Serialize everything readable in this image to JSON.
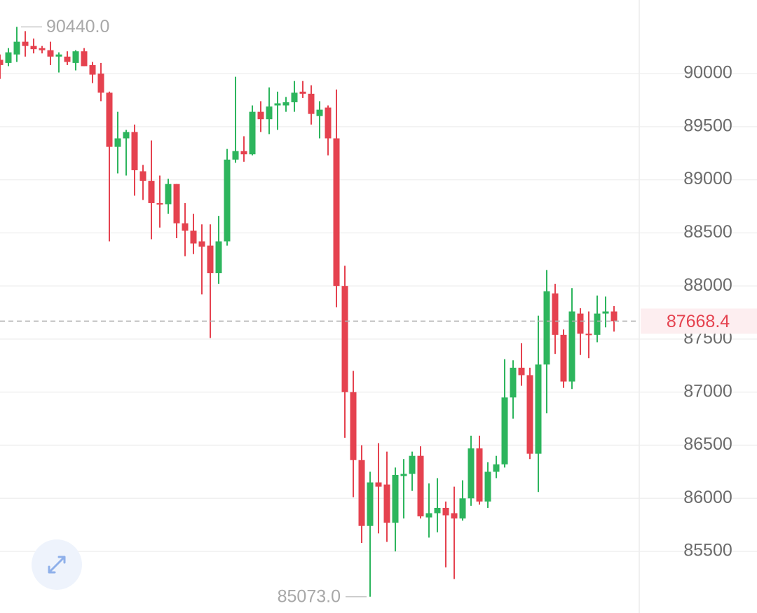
{
  "chart_data": {
    "type": "candlestick",
    "up_color": "#2db55d",
    "down_color": "#e5424f",
    "ylim": [
      84920,
      90693
    ],
    "yticks": [
      85500,
      86000,
      86500,
      87000,
      87500,
      88000,
      88500,
      89000,
      89500,
      90000
    ],
    "grid": true,
    "open": [
      90130,
      90100,
      90180,
      90300,
      90260,
      90240,
      90220,
      90160,
      90160,
      90100,
      90210,
      90080,
      90000,
      89820,
      89310,
      89390,
      89450,
      89080,
      88990,
      88780,
      88770,
      88960,
      88590,
      88520,
      88420,
      88380,
      88120,
      88420,
      89190,
      89270,
      89240,
      89640,
      89570,
      89700,
      89700,
      89730,
      89830,
      89810,
      89600,
      89680,
      89390,
      88000,
      87000,
      86360,
      85740,
      86150,
      86130,
      85770,
      86210,
      86230,
      86400,
      85820,
      85860,
      85910,
      85860,
      85810,
      86000,
      86470,
      85970,
      86250,
      86320,
      86950,
      87230,
      87160,
      86420,
      87260,
      87930,
      87540,
      87100,
      87740,
      87550,
      87540,
      87740,
      87760
    ],
    "high": [
      90180,
      90240,
      90440,
      90400,
      90330,
      90260,
      90300,
      90200,
      90210,
      90220,
      90240,
      90110,
      90100,
      89830,
      89640,
      89470,
      89520,
      89140,
      89370,
      89040,
      89010,
      88960,
      88780,
      88680,
      88580,
      88580,
      88660,
      89290,
      89970,
      89410,
      89700,
      89740,
      89870,
      89830,
      89780,
      89930,
      89930,
      89890,
      89740,
      89700,
      89850,
      88190,
      87200,
      86500,
      86250,
      86520,
      86440,
      86290,
      86370,
      86440,
      86490,
      86140,
      86190,
      85970,
      86110,
      86170,
      86590,
      86590,
      86340,
      86400,
      87310,
      87300,
      87460,
      87230,
      87720,
      88150,
      88020,
      87590,
      87980,
      87790,
      87760,
      87910,
      87900,
      87810
    ],
    "low": [
      89950,
      90070,
      90110,
      90160,
      90190,
      90190,
      90080,
      90010,
      90080,
      90030,
      90070,
      89910,
      89740,
      88420,
      89060,
      89040,
      88850,
      88810,
      88440,
      88550,
      88680,
      88450,
      88280,
      88300,
      87920,
      87510,
      88020,
      88380,
      89160,
      89170,
      89230,
      89450,
      89430,
      89470,
      89640,
      89640,
      89770,
      89520,
      89390,
      89230,
      87800,
      86570,
      86010,
      85580,
      85073,
      85670,
      85590,
      85500,
      85810,
      86070,
      85810,
      85630,
      85680,
      85350,
      85240,
      85790,
      85930,
      85940,
      85910,
      86190,
      86290,
      86750,
      87060,
      86370,
      86060,
      86800,
      87360,
      87040,
      87030,
      87350,
      87320,
      87470,
      87610,
      87570
    ],
    "close": [
      90080,
      90200,
      90300,
      90260,
      90230,
      90220,
      90160,
      90180,
      90110,
      90210,
      90070,
      89990,
      89820,
      89310,
      89390,
      89450,
      89090,
      88990,
      88780,
      88770,
      88960,
      88590,
      88520,
      88400,
      88370,
      88120,
      88420,
      89190,
      89270,
      89240,
      89640,
      89570,
      89690,
      89720,
      89730,
      89820,
      89810,
      89620,
      89660,
      89390,
      88000,
      87000,
      86360,
      85740,
      86150,
      86110,
      85770,
      86220,
      86230,
      86400,
      85830,
      85860,
      85910,
      85840,
      85810,
      86000,
      86470,
      85970,
      86250,
      86320,
      86950,
      87230,
      87160,
      86420,
      87260,
      87950,
      87540,
      87100,
      87760,
      87550,
      87540,
      87740,
      87760,
      87668.4
    ],
    "max_label": {
      "value": 90440,
      "label": "90440.0"
    },
    "min_label": {
      "value": 85073,
      "label": "85073.0"
    },
    "last_price": 87668.4
  }
}
